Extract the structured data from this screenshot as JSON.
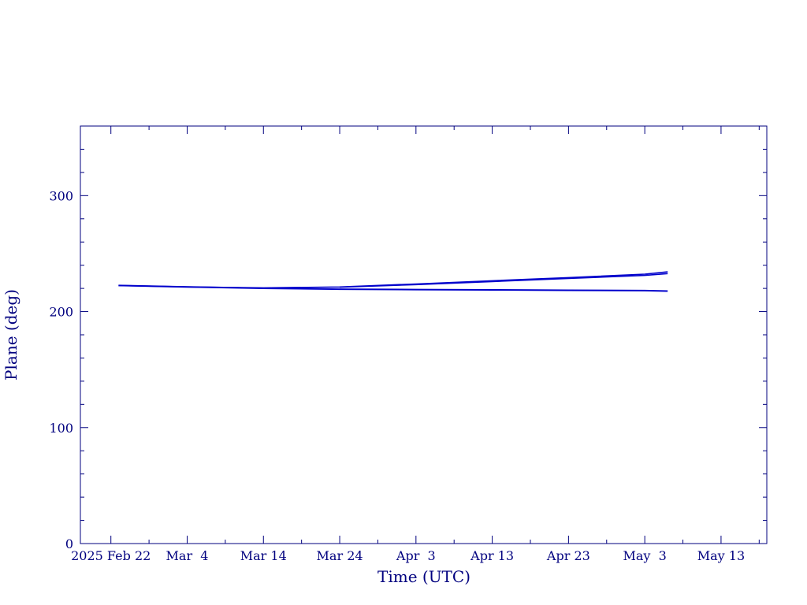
{
  "chart_data": {
    "type": "line",
    "title": "",
    "xlabel": "Time (UTC)",
    "ylabel": "Plane (deg)",
    "x_scale": "time",
    "xlim": [
      "2025-02-18",
      "2025-05-19"
    ],
    "ylim": [
      0,
      360
    ],
    "x_ticks": [
      {
        "date": "2025-02-22",
        "label": "2025 Feb 22"
      },
      {
        "date": "2025-03-04",
        "label": "Mar  4"
      },
      {
        "date": "2025-03-14",
        "label": "Mar 14"
      },
      {
        "date": "2025-03-24",
        "label": "Mar 24"
      },
      {
        "date": "2025-04-03",
        "label": "Apr  3"
      },
      {
        "date": "2025-04-13",
        "label": "Apr 13"
      },
      {
        "date": "2025-04-23",
        "label": "Apr 23"
      },
      {
        "date": "2025-05-03",
        "label": "May  3"
      },
      {
        "date": "2025-05-13",
        "label": "May 13"
      }
    ],
    "y_ticks": [
      0,
      100,
      200,
      300
    ],
    "grid": false,
    "color": "#0000cc",
    "axis_color": "#00007f",
    "series": [
      {
        "x": [
          "2025-02-23",
          "2025-03-04",
          "2025-03-14",
          "2025-03-24",
          "2025-04-03",
          "2025-04-13",
          "2025-04-23",
          "2025-05-03",
          "2025-05-06"
        ],
        "y": [
          222.5,
          221.3,
          220.5,
          221.2,
          223.8,
          226.6,
          229.3,
          232.3,
          234.3
        ]
      },
      {
        "x": [
          "2025-02-23",
          "2025-03-04",
          "2025-03-14",
          "2025-03-24",
          "2025-04-03",
          "2025-04-13",
          "2025-04-23",
          "2025-05-03",
          "2025-05-06"
        ],
        "y": [
          222.5,
          221.3,
          220.1,
          219.3,
          219.0,
          218.7,
          218.4,
          218.1,
          217.7
        ]
      },
      {
        "x": [
          "2025-03-24",
          "2025-04-03",
          "2025-04-13",
          "2025-04-23",
          "2025-05-03",
          "2025-05-06"
        ],
        "y": [
          221.0,
          223.3,
          225.9,
          228.6,
          231.2,
          232.8
        ]
      }
    ]
  }
}
